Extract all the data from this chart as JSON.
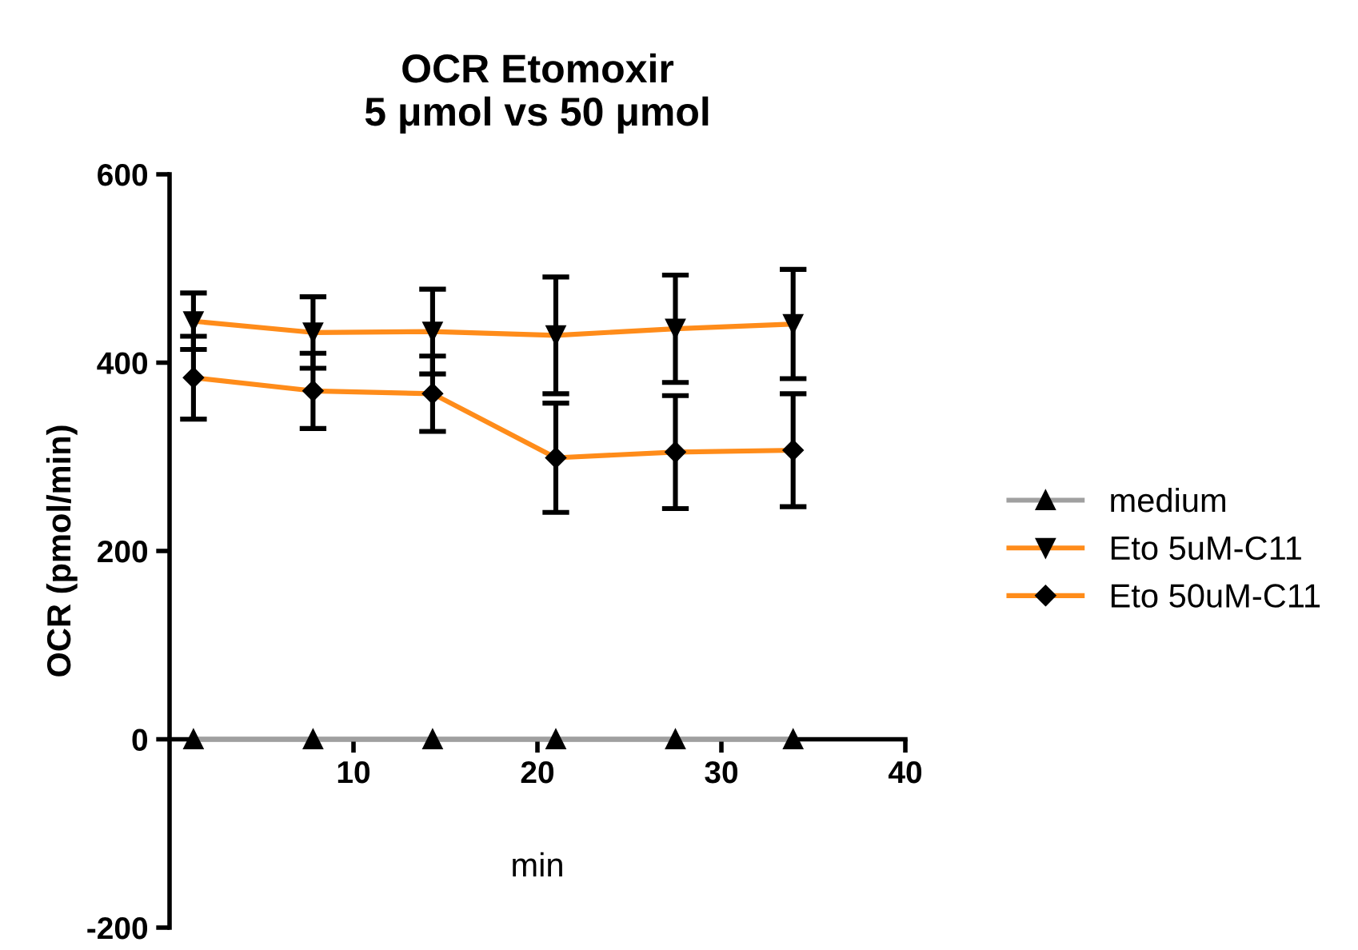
{
  "chart_data": {
    "type": "line",
    "title": "OCR Etomoxir\n5 μmol vs 50 μmol",
    "xlabel": "min",
    "ylabel": "OCR (pmol/min)",
    "x": [
      1.3,
      7.8,
      14.3,
      21.0,
      27.5,
      33.9
    ],
    "series": [
      {
        "name": "medium",
        "color": "#a0a0a0",
        "marker": "triangle",
        "values": [
          0,
          0,
          0,
          0,
          0,
          0
        ]
      },
      {
        "name": "Eto 5uM-C11",
        "color": "#ff8c1a",
        "marker": "triangle_down",
        "values": [
          444,
          432,
          433,
          429,
          436,
          441
        ],
        "errors": [
          30,
          38,
          45,
          62,
          57,
          58
        ]
      },
      {
        "name": "Eto 50uM-C11",
        "color": "#ff8c1a",
        "marker": "diamond",
        "values": [
          384,
          370,
          367,
          299,
          305,
          307
        ],
        "errors": [
          44,
          40,
          40,
          58,
          60,
          60
        ]
      }
    ],
    "xlim": [
      0,
      40
    ],
    "xticks": [
      10,
      20,
      30,
      40
    ],
    "ylim": [
      -200,
      600
    ],
    "yticks": [
      -200,
      0,
      200,
      400,
      600
    ],
    "grid": false,
    "legend": "right",
    "line_style": "solid"
  }
}
